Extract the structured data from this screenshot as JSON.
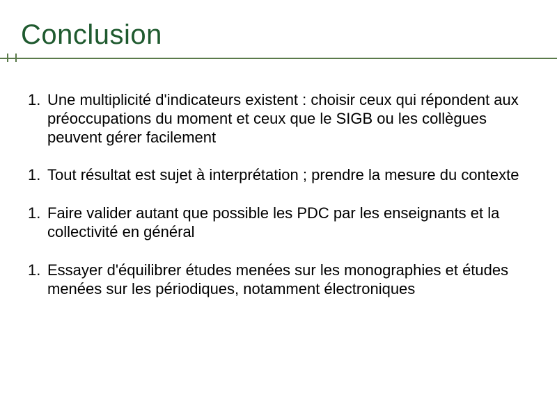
{
  "title": "Conclusion",
  "title_color": "#1f5a2f",
  "rule_color": "#5a7a4a",
  "text_color": "#000000",
  "background_color": "#ffffff",
  "title_fontsize": 40,
  "body_fontsize": 22,
  "items": [
    {
      "number": "1.",
      "text": "Une multiplicité d'indicateurs existent : choisir ceux qui répondent aux préoccupations du moment et ceux que le SIGB ou les collègues peuvent gérer facilement"
    },
    {
      "number": "1.",
      "text": "Tout résultat est sujet à interprétation ; prendre la mesure du contexte"
    },
    {
      "number": "1.",
      "text": "Faire valider autant que possible les PDC par les enseignants et la collectivité en général"
    },
    {
      "number": "1.",
      "text": "Essayer d'équilibrer études menées sur les monographies et études menées sur les périodiques, notamment électroniques"
    }
  ]
}
